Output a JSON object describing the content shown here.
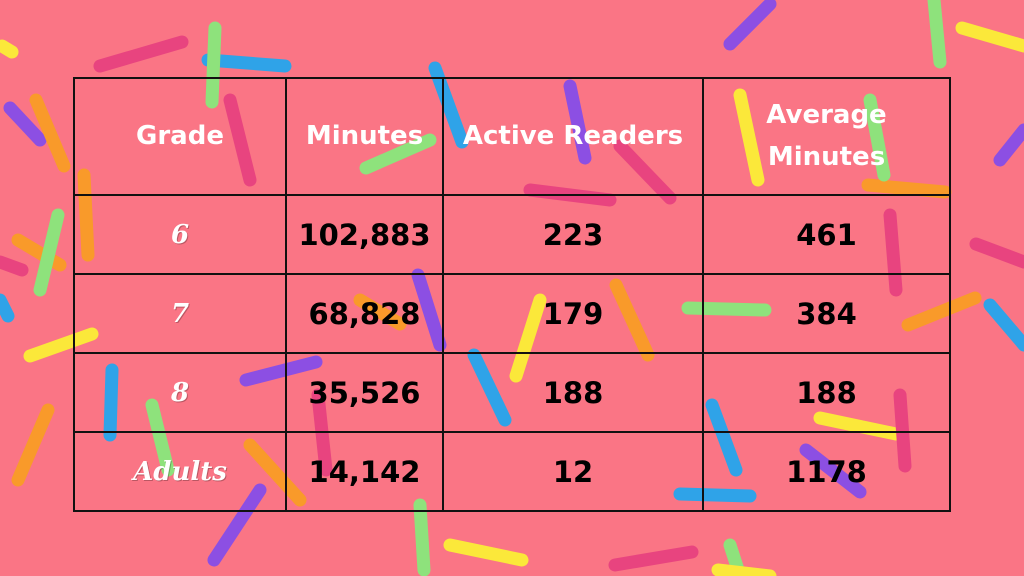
{
  "colors": {
    "background": "#fa7585",
    "header_text": "#ffffff",
    "grade_text": "#ffffff",
    "cell_text": "#000000",
    "border": "#111111"
  },
  "table": {
    "headers": [
      "Grade",
      "Minutes",
      "Active Readers",
      "Average Minutes"
    ],
    "rows": [
      {
        "grade": "6",
        "minutes": "102,883",
        "active_readers": "223",
        "average_minutes": "461"
      },
      {
        "grade": "7",
        "minutes": "68,828",
        "active_readers": "179",
        "average_minutes": "384"
      },
      {
        "grade": "8",
        "minutes": "35,526",
        "active_readers": "188",
        "average_minutes": "188"
      },
      {
        "grade": "Adults",
        "minutes": "14,142",
        "active_readers": "12",
        "average_minutes": "1178"
      }
    ]
  }
}
